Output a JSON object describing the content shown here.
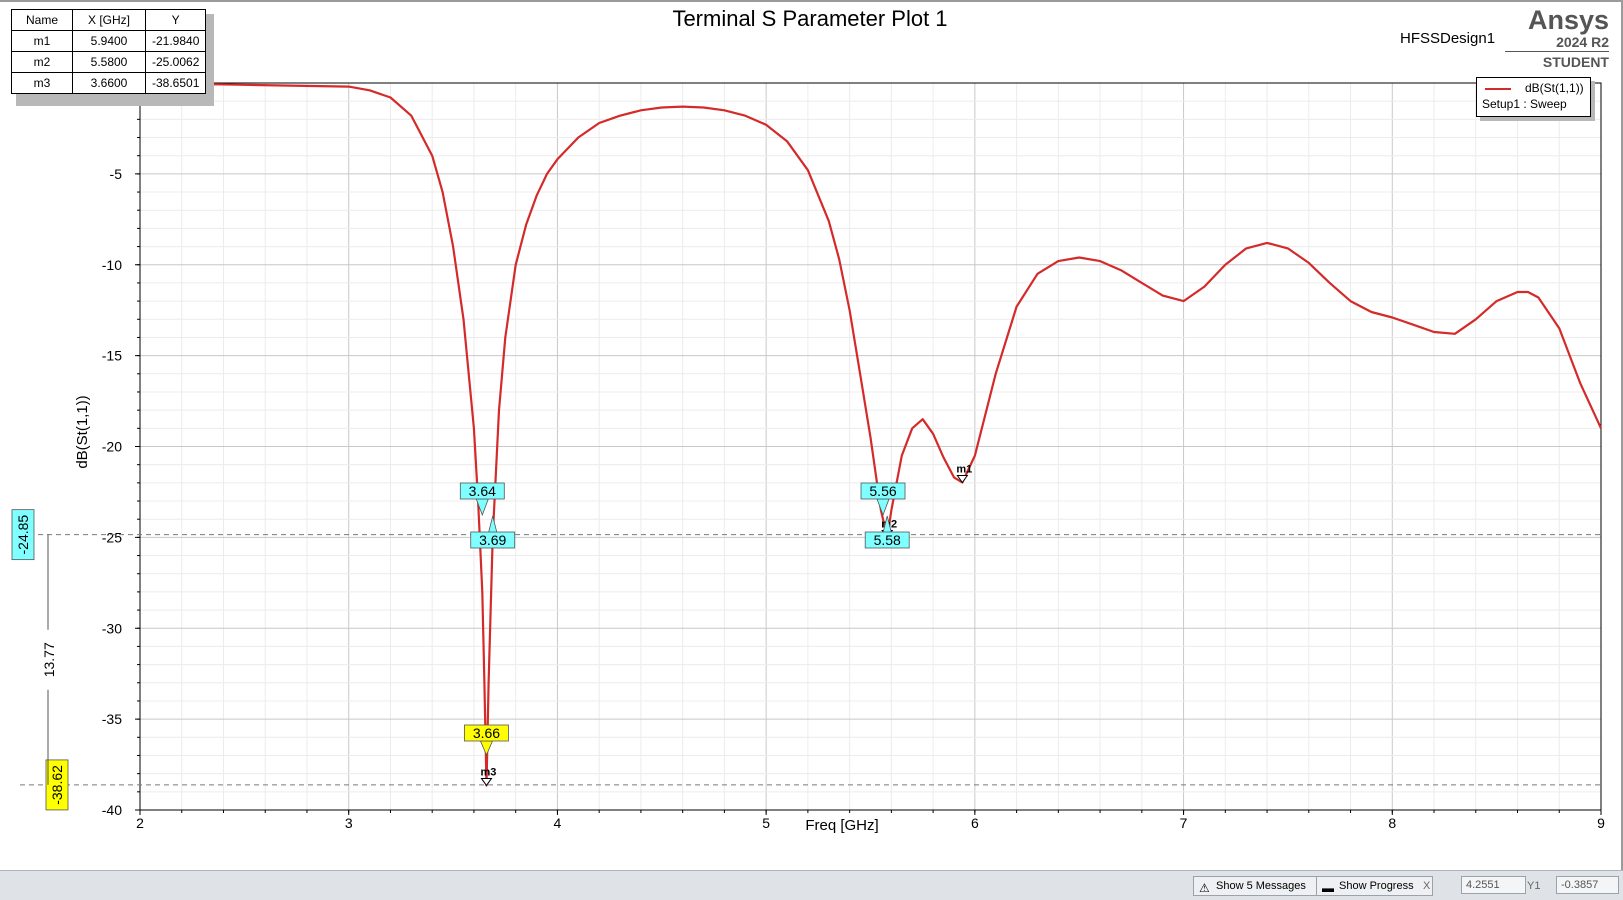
{
  "header": {
    "title": "Terminal S Parameter Plot 1",
    "design": "HFSSDesign1",
    "brand": "Ansys",
    "version": "2024 R2",
    "edition": "STUDENT"
  },
  "marker_table": {
    "columns": [
      "Name",
      "X [GHz]",
      "Y"
    ],
    "rows": [
      [
        "m1",
        "5.9400",
        "-21.9840"
      ],
      [
        "m2",
        "5.5800",
        "-25.0062"
      ],
      [
        "m3",
        "3.6600",
        "-38.6501"
      ]
    ]
  },
  "legend": {
    "series": "dB(St(1,1))",
    "setup": "Setup1 : Sweep"
  },
  "colors": {
    "trace": "#d42a2a",
    "annotation_cyan": "#7fffff",
    "annotation_yellow": "#ffff00",
    "grid": "#d4d4d4"
  },
  "chart_data": {
    "type": "line",
    "title": "Terminal S Parameter Plot 1",
    "xlabel": "Freq [GHz]",
    "ylabel": "dB(St(1,1))",
    "xlim": [
      2,
      9
    ],
    "ylim": [
      -40,
      0
    ],
    "xticks": [
      "2",
      "3",
      "4",
      "5",
      "6",
      "7",
      "8",
      "9"
    ],
    "yticks": [
      "-5",
      "-10",
      "-15",
      "-20",
      "-25",
      "-30",
      "-35",
      "-40"
    ],
    "grid": true,
    "legend_position": "top-right",
    "series": [
      {
        "name": "dB(St(1,1))",
        "x": [
          2.0,
          2.5,
          3.0,
          3.1,
          3.2,
          3.3,
          3.4,
          3.45,
          3.5,
          3.55,
          3.6,
          3.62,
          3.64,
          3.65,
          3.66,
          3.67,
          3.69,
          3.72,
          3.75,
          3.8,
          3.85,
          3.9,
          3.95,
          4.0,
          4.1,
          4.2,
          4.3,
          4.4,
          4.5,
          4.6,
          4.7,
          4.8,
          4.9,
          5.0,
          5.1,
          5.2,
          5.3,
          5.35,
          5.4,
          5.45,
          5.5,
          5.55,
          5.58,
          5.6,
          5.65,
          5.7,
          5.75,
          5.8,
          5.85,
          5.9,
          5.94,
          6.0,
          6.1,
          6.2,
          6.3,
          6.4,
          6.5,
          6.6,
          6.7,
          6.8,
          6.9,
          7.0,
          7.1,
          7.2,
          7.3,
          7.4,
          7.5,
          7.6,
          7.7,
          7.8,
          7.9,
          8.0,
          8.1,
          8.2,
          8.3,
          8.4,
          8.5,
          8.6,
          8.65,
          8.7,
          8.8,
          8.9,
          9.0
        ],
        "y": [
          0.0,
          -0.1,
          -0.2,
          -0.4,
          -0.8,
          -1.8,
          -4.0,
          -6.0,
          -9.0,
          -13.0,
          -19.0,
          -23.0,
          -28.0,
          -33.0,
          -38.65,
          -33.0,
          -25.0,
          -18.0,
          -14.0,
          -10.0,
          -7.8,
          -6.2,
          -5.0,
          -4.2,
          -3.0,
          -2.2,
          -1.8,
          -1.5,
          -1.35,
          -1.3,
          -1.35,
          -1.5,
          -1.8,
          -2.3,
          -3.2,
          -4.8,
          -7.6,
          -9.7,
          -12.5,
          -16.0,
          -19.5,
          -23.5,
          -25.0,
          -23.5,
          -20.5,
          -19.0,
          -18.5,
          -19.3,
          -20.6,
          -21.7,
          -21.98,
          -20.5,
          -16.0,
          -12.3,
          -10.5,
          -9.8,
          -9.6,
          -9.8,
          -10.3,
          -11.0,
          -11.7,
          -12.0,
          -11.2,
          -10.0,
          -9.1,
          -8.8,
          -9.1,
          -9.9,
          -11.0,
          -12.0,
          -12.6,
          -12.9,
          -13.3,
          -13.7,
          -13.8,
          -13.0,
          -12.0,
          -11.5,
          -11.5,
          -11.8,
          -13.5,
          -16.5,
          -19.0
        ]
      }
    ],
    "markers": [
      {
        "name": "m1",
        "x": 5.94,
        "y": -21.984
      },
      {
        "name": "m2",
        "x": 5.58,
        "y": -25.0062
      },
      {
        "name": "m3",
        "x": 3.66,
        "y": -38.6501
      }
    ],
    "x_callouts": [
      {
        "text": "3.64",
        "x": 3.64,
        "style": "cyan",
        "pointer": "down"
      },
      {
        "text": "3.69",
        "x": 3.69,
        "style": "cyan",
        "pointer": "up"
      },
      {
        "text": "5.56",
        "x": 5.56,
        "style": "cyan",
        "pointer": "down"
      },
      {
        "text": "5.58",
        "x": 5.58,
        "style": "cyan",
        "pointer": "up"
      },
      {
        "text": "3.66",
        "x": 3.66,
        "style": "yellow",
        "pointer": "down"
      }
    ],
    "reference_lines": [
      {
        "y": -24.85,
        "label": "-24.85",
        "style": "cyan"
      },
      {
        "y": -38.62,
        "label": "-38.62",
        "style": "yellow"
      }
    ],
    "delta_label": "13.77"
  },
  "statusbar": {
    "messages_label": "Show 5 Messages",
    "progress_label": "Show Progress",
    "x_label": "X",
    "x_value": "4.2551",
    "y_label": "Y1",
    "y_value": "-0.3857"
  }
}
